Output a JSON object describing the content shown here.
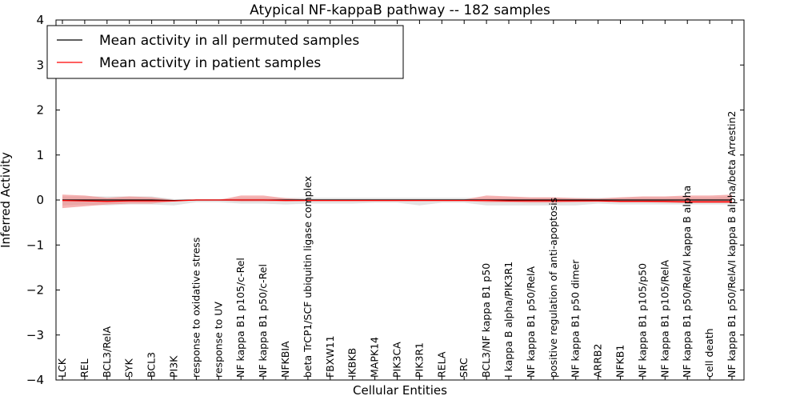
{
  "chart_data": {
    "type": "line",
    "title": "Atypical NF-kappaB pathway -- 182 samples",
    "xlabel": "Cellular Entities",
    "ylabel": "Inferred Activity",
    "ylim": [
      -4,
      4
    ],
    "yticks": [
      -4,
      -3,
      -2,
      -1,
      0,
      1,
      2,
      3,
      4
    ],
    "ytick_labels": [
      "−4",
      "−3",
      "−2",
      "−1",
      "0",
      "1",
      "2",
      "3",
      "4"
    ],
    "grid": false,
    "legend_position": "top-left",
    "categories": [
      "LCK",
      "REL",
      "BCL3/RelA",
      "SYK",
      "BCL3",
      "PI3K",
      "response to oxidative stress",
      "response to UV",
      "NF kappa B1 p105/c-Rel",
      "NF kappa B1 p50/c-Rel",
      "NFKBIA",
      "beta TrCP1/SCF ubiquitin ligase complex",
      "FBXW11",
      "IKBKB",
      "MAPK14",
      "PIK3CA",
      "PIK3R1",
      "RELA",
      "SRC",
      "BCL3/NF kappa B1 p50",
      "I kappa B alpha/PIK3R1",
      "NF kappa B1 p50/RelA",
      "positive regulation of anti-apoptosis",
      "NF kappa B1 p50 dimer",
      "ARRB2",
      "NFKB1",
      "NF kappa B1 p105/p50",
      "NF kappa B1 p105/RelA",
      "NF kappa B1 p50/RelA/I kappa B alpha",
      "cell death",
      "NF kappa B1 p50/RelA/I kappa B alpha/beta Arrestin2"
    ],
    "series": [
      {
        "name": "Mean activity in all permuted samples",
        "color": "#000000",
        "band_color": "#c8c8c8",
        "values": [
          0,
          0,
          0,
          0,
          0,
          -0.01,
          0,
          0,
          0,
          0,
          0,
          0,
          0,
          0,
          0,
          0,
          0,
          0,
          0,
          0,
          0,
          0,
          0,
          0,
          0,
          0,
          0,
          0,
          0,
          0,
          0
        ],
        "band_lower": [
          -0.12,
          -0.1,
          -0.12,
          -0.1,
          -0.1,
          -0.12,
          -0.05,
          -0.05,
          -0.08,
          -0.08,
          -0.1,
          -0.08,
          -0.08,
          -0.08,
          -0.06,
          -0.06,
          -0.12,
          -0.06,
          -0.06,
          -0.12,
          -0.12,
          -0.12,
          -0.12,
          -0.12,
          -0.08,
          -0.1,
          -0.1,
          -0.1,
          -0.1,
          -0.1,
          -0.1
        ],
        "band_upper": [
          0.08,
          0.08,
          0.08,
          0.08,
          0.08,
          0.02,
          0.02,
          0.02,
          0.05,
          0.05,
          0.05,
          0.05,
          0.05,
          0.05,
          0.05,
          0.05,
          0.05,
          0.05,
          0.05,
          0.05,
          0.05,
          0.05,
          0.05,
          0.05,
          0.05,
          0.05,
          0.06,
          0.06,
          0.06,
          0.06,
          0.08
        ]
      },
      {
        "name": "Mean activity in patient samples",
        "color": "#ff0000",
        "band_color": "#f08080",
        "values": [
          -0.01,
          -0.02,
          -0.03,
          -0.02,
          -0.02,
          -0.02,
          0,
          0,
          0,
          0,
          -0.01,
          -0.01,
          -0.01,
          -0.01,
          -0.01,
          -0.01,
          -0.01,
          -0.01,
          -0.01,
          -0.01,
          -0.02,
          -0.02,
          -0.02,
          -0.02,
          -0.02,
          -0.03,
          -0.03,
          -0.03,
          -0.04,
          -0.04,
          -0.04
        ],
        "band_lower": [
          -0.18,
          -0.14,
          -0.1,
          -0.08,
          -0.08,
          -0.03,
          -0.01,
          -0.01,
          -0.03,
          -0.03,
          -0.03,
          -0.02,
          -0.02,
          -0.02,
          -0.02,
          -0.02,
          -0.02,
          -0.02,
          -0.02,
          -0.05,
          -0.05,
          -0.06,
          -0.06,
          -0.05,
          -0.04,
          -0.05,
          -0.05,
          -0.06,
          -0.07,
          -0.07,
          -0.07
        ],
        "band_upper": [
          0.12,
          0.1,
          0.05,
          0.08,
          0.06,
          0.0,
          0.0,
          0.0,
          0.1,
          0.1,
          0.04,
          0.01,
          0.01,
          0.01,
          0.01,
          0.01,
          0.01,
          0.01,
          0.01,
          0.1,
          0.08,
          0.06,
          0.06,
          0.04,
          0.03,
          0.06,
          0.08,
          0.08,
          0.1,
          0.1,
          0.12
        ]
      }
    ]
  }
}
